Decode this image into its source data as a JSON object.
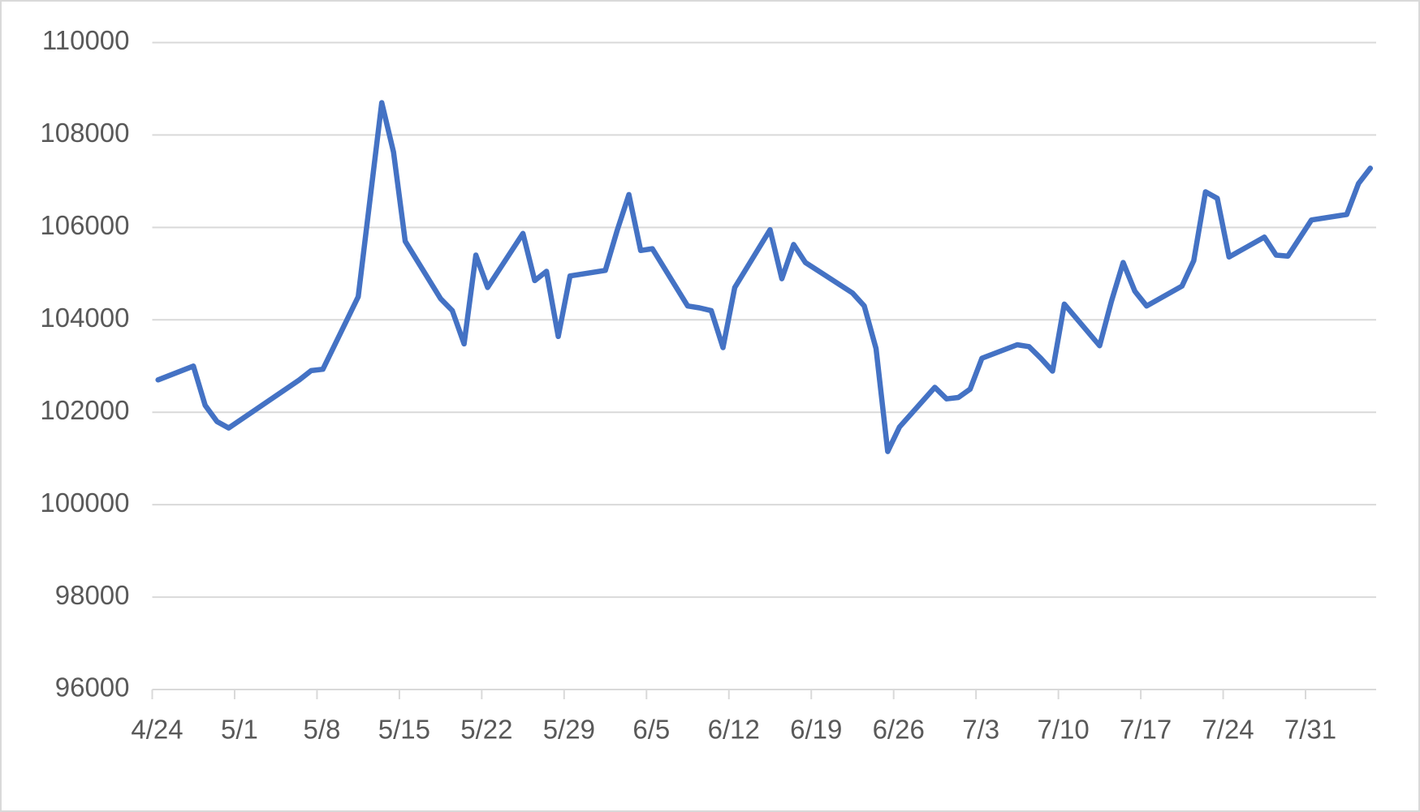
{
  "chart_data": {
    "type": "line",
    "x": [
      "4/24",
      "4/27",
      "4/28",
      "4/29",
      "4/30",
      "5/6",
      "5/7",
      "5/8",
      "5/11",
      "5/13",
      "5/14",
      "5/15",
      "5/18",
      "5/19",
      "5/20",
      "5/21",
      "5/22",
      "5/25",
      "5/26",
      "5/27",
      "5/28",
      "5/29",
      "6/1",
      "6/2",
      "6/3",
      "6/4",
      "6/5",
      "6/8",
      "6/9",
      "6/10",
      "6/11",
      "6/12",
      "6/15",
      "6/16",
      "6/17",
      "6/18",
      "6/22",
      "6/23",
      "6/24",
      "6/25",
      "6/26",
      "6/29",
      "6/30",
      "7/1",
      "7/2",
      "7/3",
      "7/6",
      "7/7",
      "7/8",
      "7/9",
      "7/10",
      "7/13",
      "7/14",
      "7/15",
      "7/16",
      "7/17",
      "7/20",
      "7/21",
      "7/22",
      "7/23",
      "7/24",
      "7/27",
      "7/28",
      "7/29",
      "7/31",
      "8/3",
      "8/4",
      "8/5"
    ],
    "values": [
      102700,
      103000,
      102150,
      101800,
      101660,
      102700,
      102900,
      102930,
      104500,
      108700,
      107630,
      105700,
      104460,
      104200,
      103480,
      105400,
      104700,
      105870,
      104850,
      105050,
      103640,
      104950,
      105070,
      105930,
      106710,
      105500,
      105540,
      104300,
      104260,
      104200,
      103400,
      104700,
      105950,
      104890,
      105630,
      105240,
      104580,
      104300,
      103380,
      101150,
      101680,
      102540,
      102290,
      102320,
      102500,
      103170,
      103460,
      103420,
      103170,
      102890,
      104340,
      103440,
      104400,
      105240,
      104620,
      104300,
      104730,
      105280,
      106770,
      106630,
      105360,
      105790,
      105400,
      105380,
      106160,
      106280,
      106950,
      107280
    ],
    "color": "#4472c4",
    "xlim": [
      "4/24",
      "8/6"
    ],
    "xticks": [
      "4/24",
      "5/1",
      "5/8",
      "5/15",
      "5/22",
      "5/29",
      "6/5",
      "6/12",
      "6/19",
      "6/26",
      "7/3",
      "7/10",
      "7/17",
      "7/24",
      "7/31"
    ],
    "ylim": [
      96000,
      110000
    ],
    "yticks": [
      96000,
      98000,
      100000,
      102000,
      104000,
      106000,
      108000,
      110000
    ],
    "grid": true
  }
}
